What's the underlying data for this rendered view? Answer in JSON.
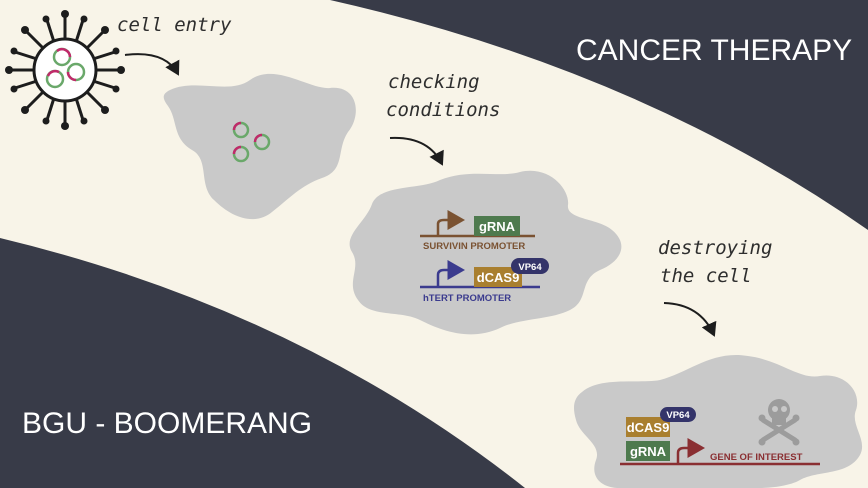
{
  "headline_top": "CANCER THERAPY",
  "headline_bottom": "BGU - BOOMERANG",
  "steps": {
    "entry": "cell entry",
    "check_1": "checking",
    "check_2": "conditions",
    "destroy_1": "destroying",
    "destroy_2": "the cell"
  },
  "constructs": {
    "grna": "gRNA",
    "survivin_promoter": "SURVIVIN PROMOTER",
    "dcas9": "dCAS9",
    "vp64": "VP64",
    "htert_promoter": "hTERT PROMOTER",
    "gene_of_interest": "GENE OF INTEREST"
  },
  "icons": [
    "virus-icon",
    "plasmid-icon",
    "skull-crossbones-icon",
    "promoter-arrow-icon"
  ],
  "colors": {
    "band": "#f8f4e8",
    "dark": "#383b48",
    "cell": "#c9c9c9",
    "grna_box": "#4e7a4e",
    "dcas9_box": "#a97f2f",
    "vp64_badge": "#34346a",
    "survivin": "#7a5232",
    "htert": "#3b3b8e",
    "gene": "#8a2f32"
  }
}
